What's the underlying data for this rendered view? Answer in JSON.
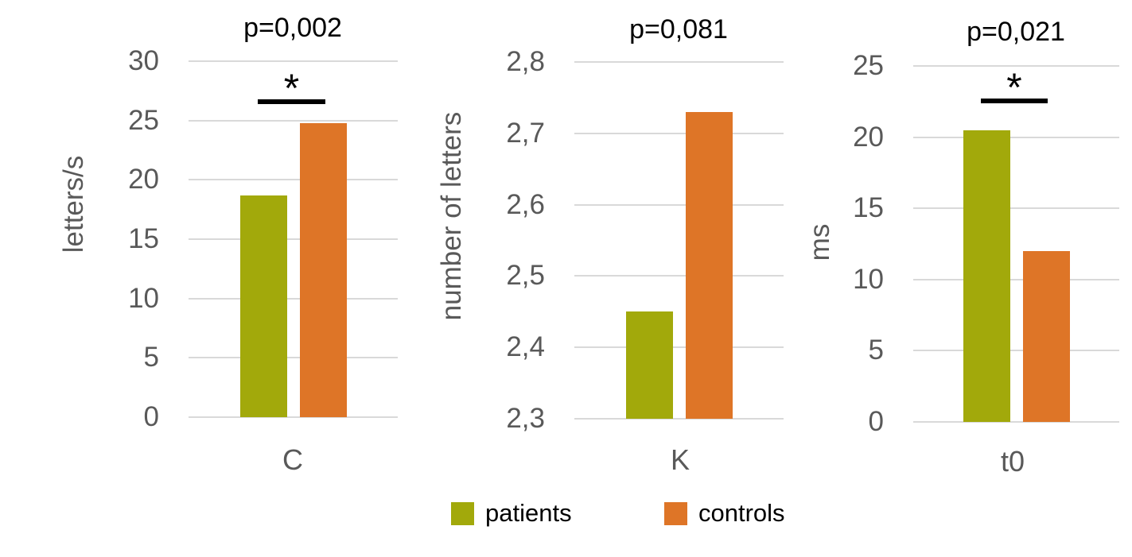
{
  "colors": {
    "patients": "#A2A90B",
    "controls": "#DE7527",
    "gridline": "#D9D9D9",
    "axis_text": "#595959",
    "title_text": "#000000",
    "significance": "#000000",
    "background": "#FFFFFF"
  },
  "legend": {
    "position": "bottom-center",
    "items": [
      {
        "label": "patients",
        "color": "#A2A90B"
      },
      {
        "label": "controls",
        "color": "#DE7527"
      }
    ]
  },
  "chart_data": [
    {
      "type": "bar",
      "title": "p=0,002",
      "xlabel": "",
      "ylabel": "letters/s",
      "categories": [
        "C"
      ],
      "series": [
        {
          "name": "patients",
          "values": [
            18.7
          ]
        },
        {
          "name": "controls",
          "values": [
            24.8
          ]
        }
      ],
      "ylim": [
        0,
        30
      ],
      "grid": true,
      "yticks": [
        {
          "label": "30",
          "value": 30
        },
        {
          "label": "25",
          "value": 25
        },
        {
          "label": "20",
          "value": 20
        },
        {
          "label": "15",
          "value": 15
        },
        {
          "label": "10",
          "value": 10
        },
        {
          "label": "5",
          "value": 5
        },
        {
          "label": "0",
          "value": 0
        }
      ],
      "significance": {
        "label": "*"
      }
    },
    {
      "type": "bar",
      "title": "p=0,081",
      "xlabel": "",
      "ylabel": "number of letters",
      "categories": [
        "K"
      ],
      "series": [
        {
          "name": "patients",
          "values": [
            2.45
          ]
        },
        {
          "name": "controls",
          "values": [
            2.73
          ]
        }
      ],
      "ylim": [
        2.3,
        2.8
      ],
      "grid": true,
      "yticks": [
        {
          "label": "2,8",
          "value": 2.8
        },
        {
          "label": "2,7",
          "value": 2.7
        },
        {
          "label": "2,6",
          "value": 2.6
        },
        {
          "label": "2,5",
          "value": 2.5
        },
        {
          "label": "2,4",
          "value": 2.4
        },
        {
          "label": "2,3",
          "value": 2.3
        }
      ]
    },
    {
      "type": "bar",
      "title": "p=0,021",
      "xlabel": "",
      "ylabel": "ms",
      "categories": [
        "t0"
      ],
      "series": [
        {
          "name": "patients",
          "values": [
            20.5
          ]
        },
        {
          "name": "controls",
          "values": [
            12
          ]
        }
      ],
      "ylim": [
        0,
        25
      ],
      "grid": true,
      "yticks": [
        {
          "label": "25",
          "value": 25
        },
        {
          "label": "20",
          "value": 20
        },
        {
          "label": "15",
          "value": 15
        },
        {
          "label": "10",
          "value": 10
        },
        {
          "label": "5",
          "value": 5
        },
        {
          "label": "0",
          "value": 0
        }
      ],
      "significance": {
        "label": "*"
      }
    }
  ]
}
